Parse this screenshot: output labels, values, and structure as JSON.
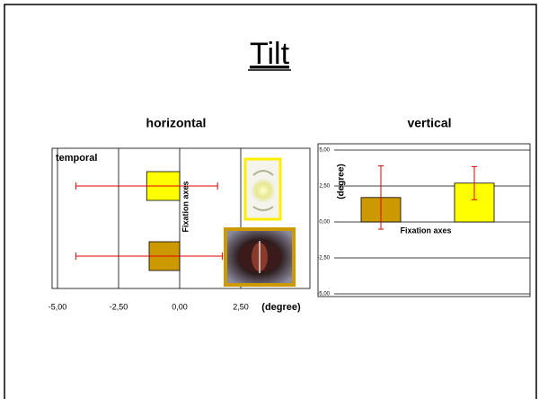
{
  "title": "Tilt",
  "chart_data": [
    {
      "type": "hbar",
      "title": "horizontal",
      "annotation": "temporal",
      "ylabel": "Fixation axes",
      "xlabel": "(degree)",
      "categories": [
        null,
        null
      ],
      "values": [
        -1.35,
        -1.25
      ],
      "errors": [
        2.9,
        3.0
      ],
      "colors": [
        "#ffff00",
        "#cc9900"
      ],
      "error_color": "#e00000",
      "xlim": [
        -5,
        5
      ],
      "xticks": [
        {
          "value": -5,
          "label": "-5,00"
        },
        {
          "value": -2.5,
          "label": "-2,50"
        },
        {
          "value": 0,
          "label": "0,00"
        },
        {
          "value": 2.5,
          "label": "2,50"
        }
      ],
      "grid": true
    },
    {
      "type": "bar",
      "title": "vertical",
      "ylabel": "(degree)",
      "xlabel": "Fixation axes",
      "categories": [
        null,
        null
      ],
      "values": [
        1.7,
        2.7
      ],
      "errors": [
        2.2,
        1.15
      ],
      "colors": [
        "#cc9900",
        "#ffff00"
      ],
      "error_color": "#e00000",
      "ylim": [
        -5,
        5
      ],
      "yticks": [
        {
          "value": 5,
          "label": "5,00"
        },
        {
          "value": 2.5,
          "label": "2,50"
        },
        {
          "value": 0,
          "label": "0,00"
        },
        {
          "value": -2.5,
          "label": "-2,50"
        },
        {
          "value": -5,
          "label": "-5,00"
        }
      ],
      "grid": true
    }
  ]
}
